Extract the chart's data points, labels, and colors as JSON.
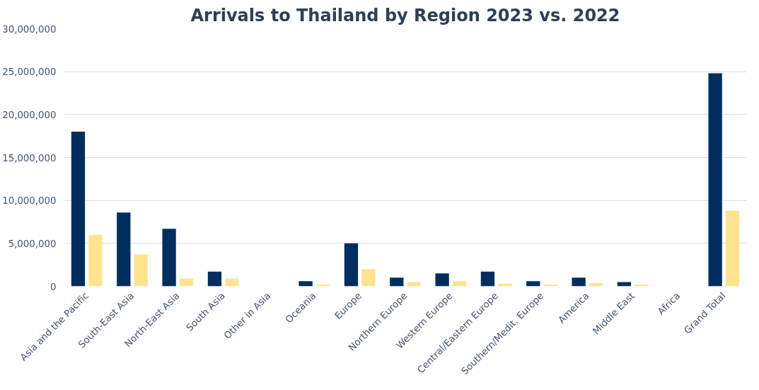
{
  "chart_data": {
    "type": "bar",
    "title": "Arrivals to Thailand by Region 2023 vs. 2022",
    "categories": [
      "Asia and the Pacific",
      "South-East Asia",
      "North-East Asia",
      "South Asia",
      "Other in Asia",
      "Oceania",
      "Europe",
      "Northern Europe",
      "Western Europe",
      "Central/Eastern Europe",
      "Southern/Medit. Europe",
      "America",
      "Middle East",
      "Africa",
      "Grand Total"
    ],
    "series": [
      {
        "color": "#002f5f",
        "values": [
          18000000,
          8600000,
          6700000,
          1700000,
          0,
          600000,
          5000000,
          1000000,
          1500000,
          1700000,
          600000,
          1000000,
          500000,
          0,
          24800000
        ]
      },
      {
        "color": "#ffe38f",
        "values": [
          6000000,
          3700000,
          900000,
          900000,
          0,
          200000,
          2000000,
          500000,
          600000,
          300000,
          200000,
          400000,
          200000,
          0,
          8800000
        ]
      }
    ],
    "ylim": [
      0,
      30000000
    ],
    "yticks": [
      {
        "value": 0,
        "label": "0"
      },
      {
        "value": 5000000,
        "label": "5,000,000"
      },
      {
        "value": 10000000,
        "label": "10,000,000"
      },
      {
        "value": 15000000,
        "label": "15,000,000"
      },
      {
        "value": 20000000,
        "label": "20,000,000"
      },
      {
        "value": 25000000,
        "label": "25,000,000"
      },
      {
        "value": 30000000,
        "label": "30,000,000"
      }
    ],
    "grid": "y"
  }
}
